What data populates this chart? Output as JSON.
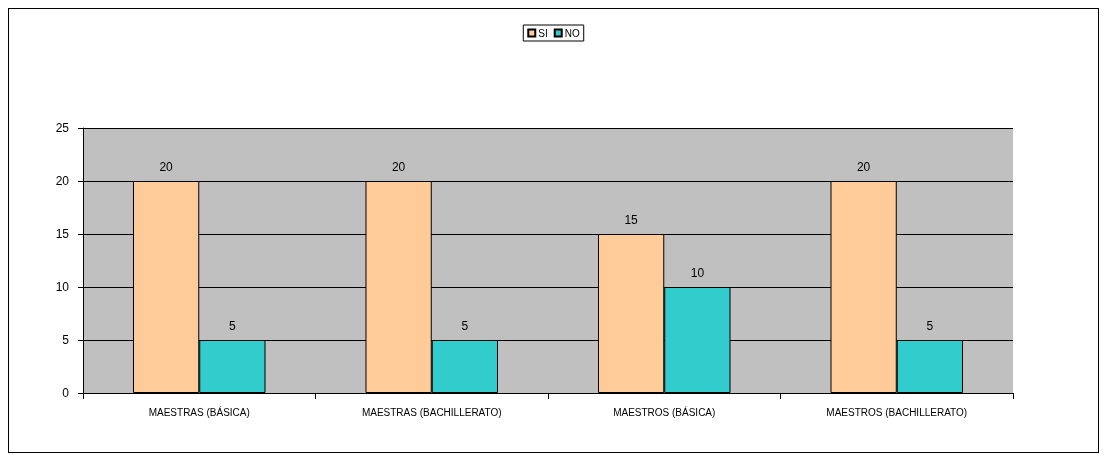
{
  "chart_data": {
    "type": "bar",
    "categories": [
      "MAESTRAS (BÁSICA)",
      "MAESTRAS (BACHILLERATO)",
      "MAESTROS (BÁSICA)",
      "MAESTROS (BACHILLERATO)"
    ],
    "series": [
      {
        "name": "SI",
        "color": "#ffcc99",
        "values": [
          20,
          20,
          15,
          20
        ]
      },
      {
        "name": "NO",
        "color": "#33cccc",
        "values": [
          5,
          5,
          10,
          5
        ]
      }
    ],
    "ylim": [
      0,
      25
    ],
    "yticks": [
      0,
      5,
      10,
      15,
      20,
      25
    ],
    "grid": "y",
    "legend": "top",
    "data_labels": true
  }
}
